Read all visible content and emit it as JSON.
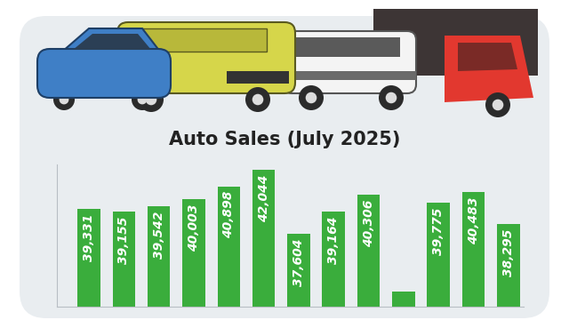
{
  "chart_data": {
    "type": "bar",
    "title": "Auto Sales (July 2025)",
    "categories": [
      null,
      null,
      null,
      null,
      null,
      null,
      null,
      null,
      null,
      null,
      null,
      null,
      null
    ],
    "values": [
      39331,
      39155,
      39542,
      40003,
      40898,
      42044,
      37604,
      39164,
      40306,
      33650,
      39775,
      40483,
      38295
    ],
    "value_labels": [
      "39,331",
      "39,155",
      "39,542",
      "40,003",
      "40,898",
      "42,044",
      "37,604",
      "39,164",
      "40,306",
      null,
      "39,775",
      "40,483",
      "38,295"
    ],
    "data_labels": true,
    "color": "#3aad3c",
    "ylim": [
      32600,
      42400
    ],
    "yticks": [],
    "grid": false,
    "tick_labels": false
  }
}
